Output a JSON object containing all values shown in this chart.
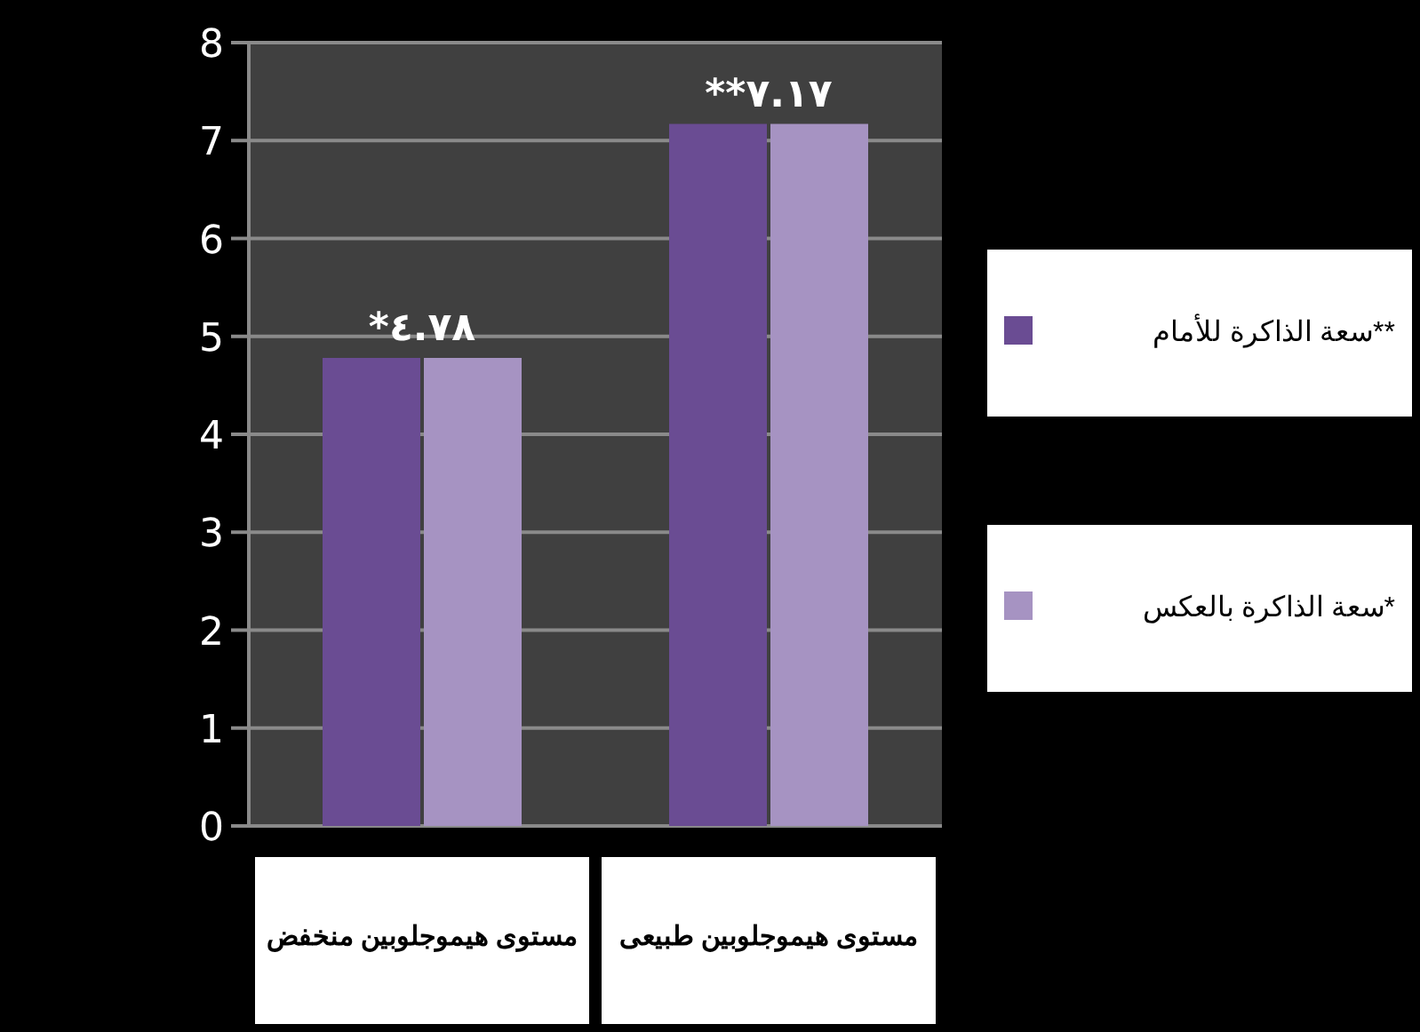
{
  "chart_data": {
    "type": "bar",
    "categories": [
      "مستوى هيموجلوبين منخفض",
      "مستوى هيموجلوبين طبيعى"
    ],
    "series": [
      {
        "name": "**سعة الذاكرة للأمام",
        "color": "#6a4c93",
        "values": [
          4.78,
          7.17
        ]
      },
      {
        "name": "*سعة الذاكرة بالعكس",
        "color": "#a693c2",
        "values": [
          4.78,
          7.17
        ]
      }
    ],
    "ylim": [
      0,
      8
    ],
    "yticks": [
      0,
      1,
      2,
      3,
      4,
      5,
      6,
      7,
      8
    ],
    "grid": "y",
    "legend": "right",
    "annotations": [
      "*٤.٧٨",
      "**٧.١٧"
    ]
  }
}
